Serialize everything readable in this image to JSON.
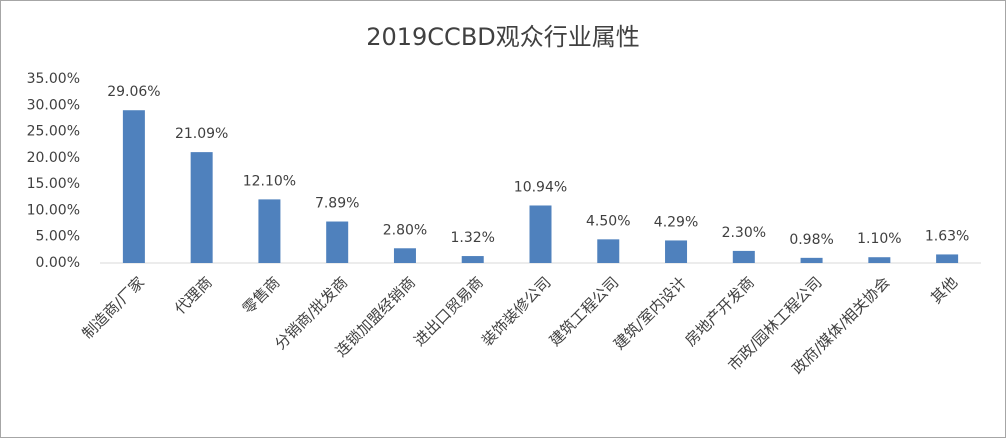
{
  "chart_data": {
    "type": "bar",
    "title": "2019CCBD观众行业属性",
    "categories": [
      "制造商/厂家",
      "代理商",
      "零售商",
      "分销商/批发商",
      "连锁加盟经销商",
      "进出口贸易商",
      "装饰装修公司",
      "建筑工程公司",
      "建筑/室内设计",
      "房地产开发商",
      "市政/园林工程公司",
      "政府/媒体/相关协会",
      "其他"
    ],
    "values": [
      29.06,
      21.09,
      12.1,
      7.89,
      2.8,
      1.32,
      10.94,
      4.5,
      4.29,
      2.3,
      0.98,
      1.1,
      1.63
    ],
    "value_labels": [
      "29.06%",
      "21.09%",
      "12.10%",
      "7.89%",
      "2.80%",
      "1.32%",
      "10.94%",
      "4.50%",
      "4.29%",
      "2.30%",
      "0.98%",
      "1.10%",
      "1.63%"
    ],
    "color": "#4f81bd",
    "ylim": [
      0,
      35
    ],
    "yticks": [
      {
        "value": 0,
        "label": "0.00%"
      },
      {
        "value": 5,
        "label": "5.00%"
      },
      {
        "value": 10,
        "label": "10.00%"
      },
      {
        "value": 15,
        "label": "15.00%"
      },
      {
        "value": 20,
        "label": "20.00%"
      },
      {
        "value": 25,
        "label": "25.00%"
      },
      {
        "value": 30,
        "label": "30.00%"
      },
      {
        "value": 35,
        "label": "35.00%"
      }
    ],
    "grid": false
  }
}
